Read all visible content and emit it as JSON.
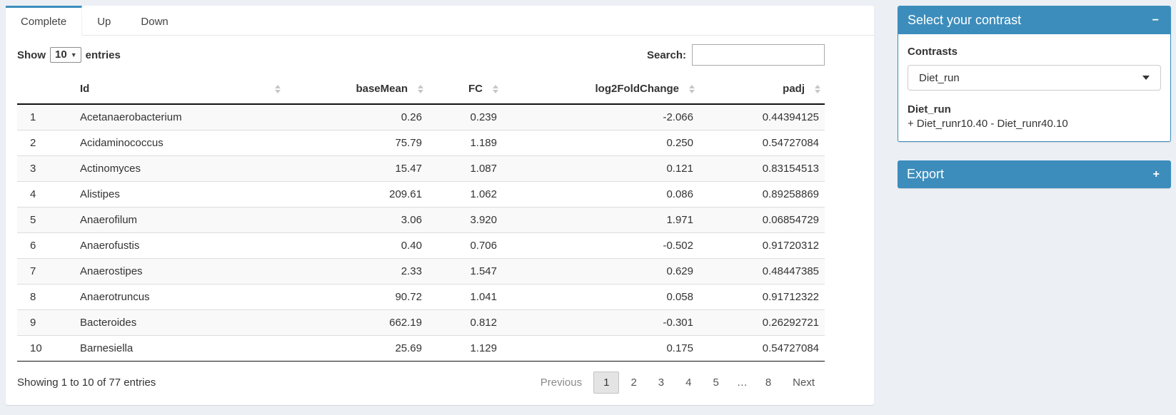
{
  "tabs": [
    {
      "label": "Complete",
      "active": true
    },
    {
      "label": "Up",
      "active": false
    },
    {
      "label": "Down",
      "active": false
    }
  ],
  "length_menu": {
    "prefix": "Show",
    "value": "10",
    "suffix": "entries"
  },
  "search": {
    "label": "Search:",
    "value": ""
  },
  "table": {
    "columns": [
      "",
      "Id",
      "baseMean",
      "FC",
      "log2FoldChange",
      "padj"
    ],
    "rows": [
      {
        "num": "1",
        "id": "Acetanaerobacterium",
        "baseMean": "0.26",
        "fc": "0.239",
        "log2fc": "-2.066",
        "padj": "0.44394125"
      },
      {
        "num": "2",
        "id": "Acidaminococcus",
        "baseMean": "75.79",
        "fc": "1.189",
        "log2fc": "0.250",
        "padj": "0.54727084"
      },
      {
        "num": "3",
        "id": "Actinomyces",
        "baseMean": "15.47",
        "fc": "1.087",
        "log2fc": "0.121",
        "padj": "0.83154513"
      },
      {
        "num": "4",
        "id": "Alistipes",
        "baseMean": "209.61",
        "fc": "1.062",
        "log2fc": "0.086",
        "padj": "0.89258869"
      },
      {
        "num": "5",
        "id": "Anaerofilum",
        "baseMean": "3.06",
        "fc": "3.920",
        "log2fc": "1.971",
        "padj": "0.06854729"
      },
      {
        "num": "6",
        "id": "Anaerofustis",
        "baseMean": "0.40",
        "fc": "0.706",
        "log2fc": "-0.502",
        "padj": "0.91720312"
      },
      {
        "num": "7",
        "id": "Anaerostipes",
        "baseMean": "2.33",
        "fc": "1.547",
        "log2fc": "0.629",
        "padj": "0.48447385"
      },
      {
        "num": "8",
        "id": "Anaerotruncus",
        "baseMean": "90.72",
        "fc": "1.041",
        "log2fc": "0.058",
        "padj": "0.91712322"
      },
      {
        "num": "9",
        "id": "Bacteroides",
        "baseMean": "662.19",
        "fc": "0.812",
        "log2fc": "-0.301",
        "padj": "0.26292721"
      },
      {
        "num": "10",
        "id": "Barnesiella",
        "baseMean": "25.69",
        "fc": "1.129",
        "log2fc": "0.175",
        "padj": "0.54727084"
      }
    ]
  },
  "footer": {
    "info": "Showing 1 to 10 of 77 entries",
    "pagination": [
      {
        "label": "Previous",
        "state": "disabled"
      },
      {
        "label": "1",
        "state": "current"
      },
      {
        "label": "2",
        "state": ""
      },
      {
        "label": "3",
        "state": ""
      },
      {
        "label": "4",
        "state": ""
      },
      {
        "label": "5",
        "state": ""
      },
      {
        "label": "…",
        "state": "ellipsis"
      },
      {
        "label": "8",
        "state": ""
      },
      {
        "label": "Next",
        "state": ""
      }
    ]
  },
  "contrast_box": {
    "title": "Select your contrast",
    "collapse_icon": "−",
    "label": "Contrasts",
    "selected": "Diet_run",
    "detail_title": "Diet_run",
    "detail_text": "+ Diet_runr10.40 - Diet_runr40.10"
  },
  "export_box": {
    "title": "Export",
    "expand_icon": "+"
  },
  "colors": {
    "primary": "#3c8dbc",
    "page_background": "#ecf0f5"
  }
}
